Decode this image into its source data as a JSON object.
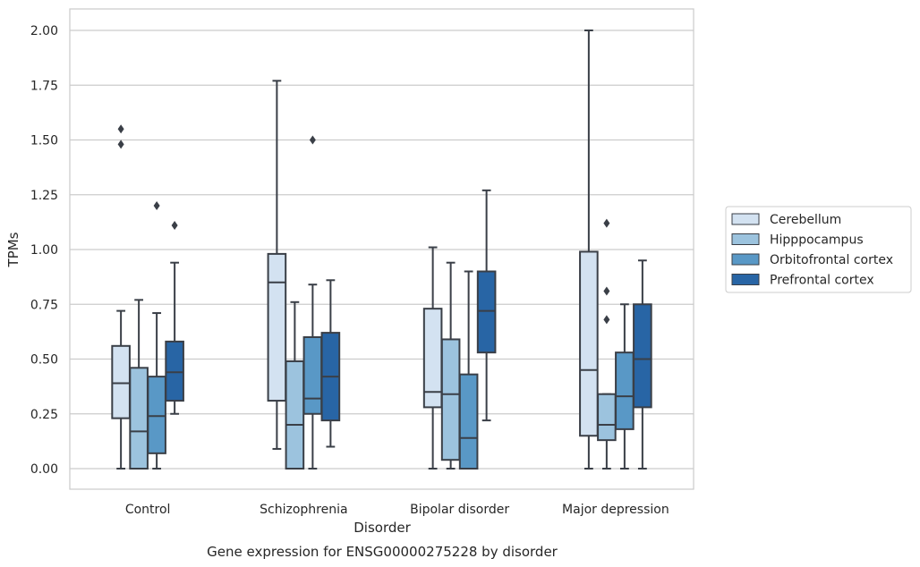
{
  "chart_data": {
    "type": "boxplot",
    "title": "",
    "caption": "Gene expression for ENSG00000275228 by disorder",
    "xlabel": "Disorder",
    "ylabel": "TPMs",
    "ylim": [
      -0.1,
      2.1
    ],
    "yticks": [
      "0.00",
      "0.25",
      "0.50",
      "0.75",
      "1.00",
      "1.25",
      "1.50",
      "1.75",
      "2.00"
    ],
    "grid": "horizontal",
    "legend_position": "right",
    "categories": [
      "Control",
      "Schizophrenia",
      "Bipolar disorder",
      "Major depression"
    ],
    "series": [
      {
        "name": "Cerebellum",
        "color": "#d3e2f1",
        "boxes": [
          {
            "whisker_low": 0.0,
            "q1": 0.23,
            "median": 0.39,
            "q3": 0.56,
            "whisker_high": 0.72,
            "outliers": [
              1.48,
              1.55
            ]
          },
          {
            "whisker_low": 0.09,
            "q1": 0.31,
            "median": 0.85,
            "q3": 0.98,
            "whisker_high": 1.77,
            "outliers": []
          },
          {
            "whisker_low": 0.0,
            "q1": 0.28,
            "median": 0.35,
            "q3": 0.73,
            "whisker_high": 1.01,
            "outliers": []
          },
          {
            "whisker_low": 0.0,
            "q1": 0.15,
            "median": 0.45,
            "q3": 0.99,
            "whisker_high": 2.0,
            "outliers": []
          }
        ]
      },
      {
        "name": "Hipppocampus",
        "color": "#9cc3de",
        "boxes": [
          {
            "whisker_low": 0.0,
            "q1": 0.0,
            "median": 0.17,
            "q3": 0.46,
            "whisker_high": 0.77,
            "outliers": []
          },
          {
            "whisker_low": 0.0,
            "q1": 0.0,
            "median": 0.2,
            "q3": 0.49,
            "whisker_high": 0.76,
            "outliers": []
          },
          {
            "whisker_low": 0.0,
            "q1": 0.04,
            "median": 0.34,
            "q3": 0.59,
            "whisker_high": 0.94,
            "outliers": []
          },
          {
            "whisker_low": 0.0,
            "q1": 0.13,
            "median": 0.2,
            "q3": 0.34,
            "whisker_high": 0.34,
            "outliers": [
              0.68,
              0.81,
              1.12
            ]
          }
        ]
      },
      {
        "name": "Orbitofrontal cortex",
        "color": "#5998c6",
        "boxes": [
          {
            "whisker_low": 0.0,
            "q1": 0.07,
            "median": 0.24,
            "q3": 0.42,
            "whisker_high": 0.71,
            "outliers": [
              1.2
            ]
          },
          {
            "whisker_low": 0.0,
            "q1": 0.25,
            "median": 0.32,
            "q3": 0.6,
            "whisker_high": 0.84,
            "outliers": [
              1.5
            ]
          },
          {
            "whisker_low": 0.0,
            "q1": 0.0,
            "median": 0.14,
            "q3": 0.43,
            "whisker_high": 0.9,
            "outliers": []
          },
          {
            "whisker_low": 0.0,
            "q1": 0.18,
            "median": 0.33,
            "q3": 0.53,
            "whisker_high": 0.75,
            "outliers": []
          }
        ]
      },
      {
        "name": "Prefrontal cortex",
        "color": "#2865a5",
        "boxes": [
          {
            "whisker_low": 0.25,
            "q1": 0.31,
            "median": 0.44,
            "q3": 0.58,
            "whisker_high": 0.94,
            "outliers": [
              1.11
            ]
          },
          {
            "whisker_low": 0.1,
            "q1": 0.22,
            "median": 0.42,
            "q3": 0.62,
            "whisker_high": 0.86,
            "outliers": []
          },
          {
            "whisker_low": 0.22,
            "q1": 0.53,
            "median": 0.72,
            "q3": 0.9,
            "whisker_high": 1.27,
            "outliers": []
          },
          {
            "whisker_low": 0.0,
            "q1": 0.28,
            "median": 0.5,
            "q3": 0.75,
            "whisker_high": 0.95,
            "outliers": []
          }
        ]
      }
    ]
  }
}
